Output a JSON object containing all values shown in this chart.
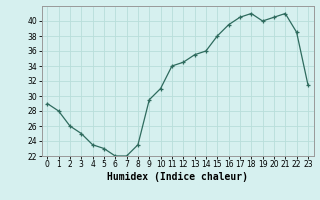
{
  "x": [
    0,
    1,
    2,
    3,
    4,
    5,
    6,
    7,
    8,
    9,
    10,
    11,
    12,
    13,
    14,
    15,
    16,
    17,
    18,
    19,
    20,
    21,
    22,
    23
  ],
  "y": [
    29,
    28,
    26,
    25,
    23.5,
    23,
    22,
    22,
    23.5,
    29.5,
    31,
    34,
    34.5,
    35.5,
    36,
    38,
    39.5,
    40.5,
    41,
    40,
    40.5,
    41,
    38.5,
    31.5
  ],
  "line_color": "#2e6b5e",
  "marker": "+",
  "bg_color": "#d6f0ef",
  "grid_color": "#b8deda",
  "xlabel": "Humidex (Indice chaleur)",
  "ylim": [
    22,
    42
  ],
  "yticks": [
    22,
    24,
    26,
    28,
    30,
    32,
    34,
    36,
    38,
    40
  ],
  "xlim": [
    -0.5,
    23.5
  ],
  "tick_fontsize": 5.5,
  "xlabel_fontsize": 7.0,
  "spine_color": "#999999"
}
